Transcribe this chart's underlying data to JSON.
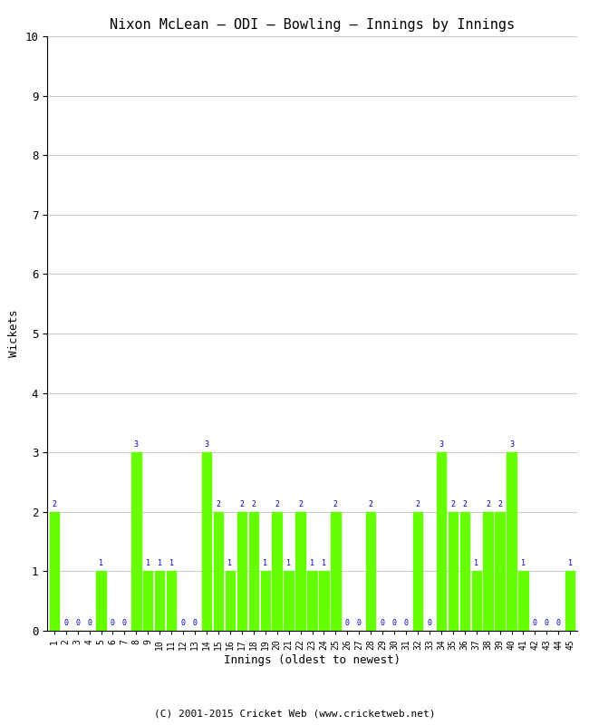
{
  "title": "Nixon McLean – ODI – Bowling – Innings by Innings",
  "xlabel": "Innings (oldest to newest)",
  "ylabel": "Wickets",
  "bar_color": "#66ff00",
  "label_color": "#0000cc",
  "background_color": "#ffffff",
  "grid_color": "#cccccc",
  "ylim": [
    0,
    10
  ],
  "yticks": [
    0,
    1,
    2,
    3,
    4,
    5,
    6,
    7,
    8,
    9,
    10
  ],
  "footer": "(C) 2001-2015 Cricket Web (www.cricketweb.net)",
  "innings": [
    1,
    2,
    3,
    4,
    5,
    6,
    7,
    8,
    9,
    10,
    11,
    12,
    13,
    14,
    15,
    16,
    17,
    18,
    19,
    20,
    21,
    22,
    23,
    24,
    25,
    26,
    27,
    28,
    29,
    30,
    31,
    32,
    33,
    34,
    35,
    36,
    37,
    38,
    39,
    40,
    41,
    42,
    43,
    44,
    45
  ],
  "wickets": [
    2,
    0,
    0,
    0,
    1,
    0,
    0,
    3,
    1,
    1,
    1,
    0,
    0,
    3,
    2,
    1,
    2,
    2,
    1,
    2,
    1,
    2,
    1,
    1,
    2,
    0,
    0,
    2,
    0,
    0,
    0,
    2,
    0,
    3,
    2,
    2,
    1,
    2,
    2,
    3,
    1,
    0,
    0,
    0,
    1
  ]
}
